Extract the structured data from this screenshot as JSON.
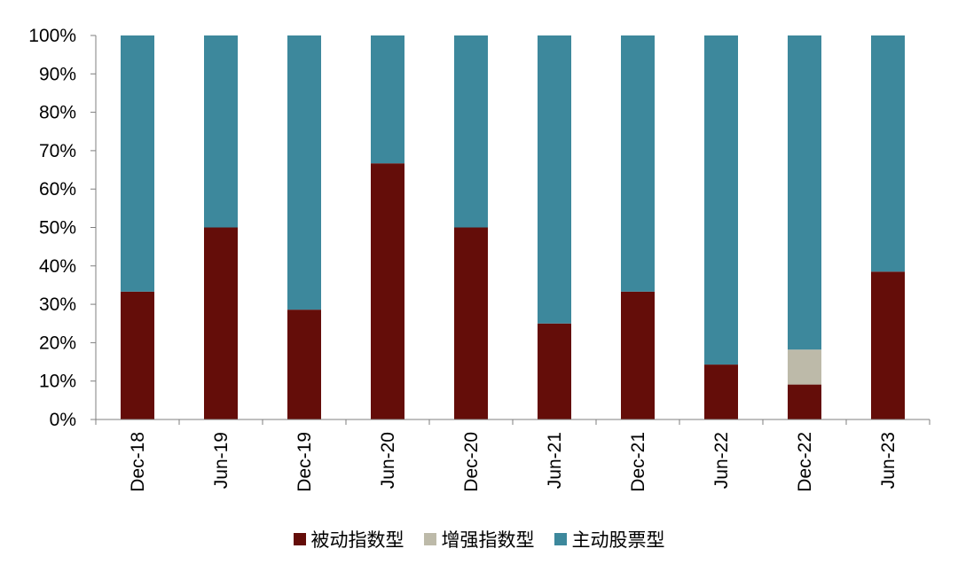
{
  "chart_data": {
    "type": "bar",
    "stacked": true,
    "percent": true,
    "categories": [
      "Dec-18",
      "Jun-19",
      "Dec-19",
      "Jun-20",
      "Dec-20",
      "Jun-21",
      "Dec-21",
      "Jun-22",
      "Dec-22",
      "Jun-23"
    ],
    "series": [
      {
        "name": "被动指数型",
        "color": "#640d09",
        "values": [
          33.3,
          50.0,
          28.6,
          66.7,
          50.0,
          25.0,
          33.3,
          14.3,
          9.1,
          38.5
        ]
      },
      {
        "name": "增强指数型",
        "color": "#bdbaa9",
        "values": [
          0,
          0,
          0,
          0,
          0,
          0,
          0,
          0,
          9.1,
          0
        ]
      },
      {
        "name": "主动股票型",
        "color": "#3d889c",
        "values": [
          66.7,
          50.0,
          71.4,
          33.3,
          50.0,
          75.0,
          66.7,
          85.7,
          81.8,
          61.5
        ]
      }
    ],
    "ylim": [
      0,
      100
    ],
    "yticks": [
      "0%",
      "10%",
      "20%",
      "30%",
      "40%",
      "50%",
      "60%",
      "70%",
      "80%",
      "90%",
      "100%"
    ],
    "xlabel": "",
    "ylabel": "",
    "grid": false,
    "legend_position": "bottom"
  }
}
